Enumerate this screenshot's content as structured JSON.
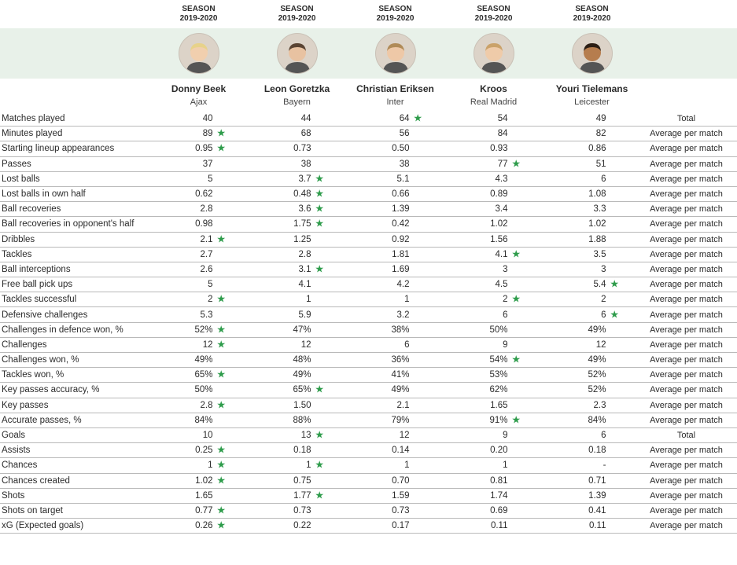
{
  "season_label_line1": "SEASON",
  "season_label_line2": "2019-2020",
  "star_glyph": "★",
  "star_color": "#2e9c4b",
  "avatar_band_bg": "#e8f1e9",
  "row_border_color": "#b9b9b9",
  "text_color": "#2b2b2b",
  "players": [
    {
      "name": "Donny Beek",
      "club": "Ajax",
      "skin": "#f1cfae",
      "hair": "#e7d28a"
    },
    {
      "name": "Leon Goretzka",
      "club": "Bayern",
      "skin": "#e8c2a1",
      "hair": "#5a4433"
    },
    {
      "name": "Christian Eriksen",
      "club": "Inter",
      "skin": "#eec8a7",
      "hair": "#b08b58"
    },
    {
      "name": "Kroos",
      "club": "Real Madrid",
      "skin": "#efcba9",
      "hair": "#caa26a"
    },
    {
      "name": "Youri Tielemans",
      "club": "Leicester",
      "skin": "#b67d4e",
      "hair": "#2b1e14"
    }
  ],
  "agg_labels": {
    "total": "Total",
    "avg": "Average per match"
  },
  "metrics": [
    {
      "label": "Matches played",
      "agg": "total",
      "values": [
        {
          "v": "40"
        },
        {
          "v": "44"
        },
        {
          "v": "64",
          "best": true
        },
        {
          "v": "54"
        },
        {
          "v": "49"
        }
      ]
    },
    {
      "label": "Minutes played",
      "agg": "avg",
      "values": [
        {
          "v": "89",
          "best": true
        },
        {
          "v": "68"
        },
        {
          "v": "56"
        },
        {
          "v": "84"
        },
        {
          "v": "82"
        }
      ]
    },
    {
      "label": "Starting lineup appearances",
      "agg": "avg",
      "values": [
        {
          "v": "0.95",
          "best": true
        },
        {
          "v": "0.73"
        },
        {
          "v": "0.50"
        },
        {
          "v": "0.93"
        },
        {
          "v": "0.86"
        }
      ]
    },
    {
      "label": "Passes",
      "agg": "avg",
      "values": [
        {
          "v": "37"
        },
        {
          "v": "38"
        },
        {
          "v": "38"
        },
        {
          "v": "77",
          "best": true
        },
        {
          "v": "51"
        }
      ]
    },
    {
      "label": "Lost balls",
      "agg": "avg",
      "values": [
        {
          "v": "5"
        },
        {
          "v": "3.7",
          "best": true
        },
        {
          "v": "5.1"
        },
        {
          "v": "4.3"
        },
        {
          "v": "6"
        }
      ]
    },
    {
      "label": "Lost balls in own half",
      "agg": "avg",
      "values": [
        {
          "v": "0.62"
        },
        {
          "v": "0.48",
          "best": true
        },
        {
          "v": "0.66"
        },
        {
          "v": "0.89"
        },
        {
          "v": "1.08"
        }
      ]
    },
    {
      "label": "Ball recoveries",
      "agg": "avg",
      "values": [
        {
          "v": "2.8"
        },
        {
          "v": "3.6",
          "best": true
        },
        {
          "v": "1.39"
        },
        {
          "v": "3.4"
        },
        {
          "v": "3.3"
        }
      ]
    },
    {
      "label": "Ball recoveries in opponent's half",
      "agg": "avg",
      "values": [
        {
          "v": "0.98"
        },
        {
          "v": "1.75",
          "best": true
        },
        {
          "v": "0.42"
        },
        {
          "v": "1.02"
        },
        {
          "v": "1.02"
        }
      ]
    },
    {
      "label": "Dribbles",
      "agg": "avg",
      "values": [
        {
          "v": "2.1",
          "best": true
        },
        {
          "v": "1.25"
        },
        {
          "v": "0.92"
        },
        {
          "v": "1.56"
        },
        {
          "v": "1.88"
        }
      ]
    },
    {
      "label": "Tackles",
      "agg": "avg",
      "values": [
        {
          "v": "2.7"
        },
        {
          "v": "2.8"
        },
        {
          "v": "1.81"
        },
        {
          "v": "4.1",
          "best": true
        },
        {
          "v": "3.5"
        }
      ]
    },
    {
      "label": "Ball interceptions",
      "agg": "avg",
      "values": [
        {
          "v": "2.6"
        },
        {
          "v": "3.1",
          "best": true
        },
        {
          "v": "1.69"
        },
        {
          "v": "3"
        },
        {
          "v": "3"
        }
      ]
    },
    {
      "label": "Free ball pick ups",
      "agg": "avg",
      "values": [
        {
          "v": "5"
        },
        {
          "v": "4.1"
        },
        {
          "v": "4.2"
        },
        {
          "v": "4.5"
        },
        {
          "v": "5.4",
          "best": true
        }
      ]
    },
    {
      "label": "Tackles successful",
      "agg": "avg",
      "values": [
        {
          "v": "2",
          "best": true
        },
        {
          "v": "1"
        },
        {
          "v": "1"
        },
        {
          "v": "2",
          "best": true
        },
        {
          "v": "2"
        }
      ]
    },
    {
      "label": "Defensive challenges",
      "agg": "avg",
      "values": [
        {
          "v": "5.3"
        },
        {
          "v": "5.9"
        },
        {
          "v": "3.2"
        },
        {
          "v": "6"
        },
        {
          "v": "6",
          "best": true
        }
      ]
    },
    {
      "label": "Challenges in defence won, %",
      "agg": "avg",
      "values": [
        {
          "v": "52%",
          "best": true
        },
        {
          "v": "47%"
        },
        {
          "v": "38%"
        },
        {
          "v": "50%"
        },
        {
          "v": "49%"
        }
      ]
    },
    {
      "label": "Challenges",
      "agg": "avg",
      "values": [
        {
          "v": "12",
          "best": true
        },
        {
          "v": "12"
        },
        {
          "v": "6"
        },
        {
          "v": "9"
        },
        {
          "v": "12"
        }
      ]
    },
    {
      "label": "Challenges won, %",
      "agg": "avg",
      "values": [
        {
          "v": "49%"
        },
        {
          "v": "48%"
        },
        {
          "v": "36%"
        },
        {
          "v": "54%",
          "best": true
        },
        {
          "v": "49%"
        }
      ]
    },
    {
      "label": "Tackles won, %",
      "agg": "avg",
      "values": [
        {
          "v": "65%",
          "best": true
        },
        {
          "v": "49%"
        },
        {
          "v": "41%"
        },
        {
          "v": "53%"
        },
        {
          "v": "52%"
        }
      ]
    },
    {
      "label": "Key passes accuracy, %",
      "agg": "avg",
      "values": [
        {
          "v": "50%"
        },
        {
          "v": "65%",
          "best": true
        },
        {
          "v": "49%"
        },
        {
          "v": "62%"
        },
        {
          "v": "52%"
        }
      ]
    },
    {
      "label": "Key passes",
      "agg": "avg",
      "values": [
        {
          "v": "2.8",
          "best": true
        },
        {
          "v": "1.50"
        },
        {
          "v": "2.1"
        },
        {
          "v": "1.65"
        },
        {
          "v": "2.3"
        }
      ]
    },
    {
      "label": "Accurate passes, %",
      "agg": "avg",
      "values": [
        {
          "v": "84%"
        },
        {
          "v": "88%"
        },
        {
          "v": "79%"
        },
        {
          "v": "91%",
          "best": true
        },
        {
          "v": "84%"
        }
      ]
    },
    {
      "label": "Goals",
      "agg": "total",
      "values": [
        {
          "v": "10"
        },
        {
          "v": "13",
          "best": true
        },
        {
          "v": "12"
        },
        {
          "v": "9"
        },
        {
          "v": "6"
        }
      ]
    },
    {
      "label": "Assists",
      "agg": "avg",
      "values": [
        {
          "v": "0.25",
          "best": true
        },
        {
          "v": "0.18"
        },
        {
          "v": "0.14"
        },
        {
          "v": "0.20"
        },
        {
          "v": "0.18"
        }
      ]
    },
    {
      "label": "Chances",
      "agg": "avg",
      "values": [
        {
          "v": "1",
          "best": true
        },
        {
          "v": "1",
          "best": true
        },
        {
          "v": "1"
        },
        {
          "v": "1"
        },
        {
          "v": "-"
        }
      ]
    },
    {
      "label": "Chances created",
      "agg": "avg",
      "values": [
        {
          "v": "1.02",
          "best": true
        },
        {
          "v": "0.75"
        },
        {
          "v": "0.70"
        },
        {
          "v": "0.81"
        },
        {
          "v": "0.71"
        }
      ]
    },
    {
      "label": "Shots",
      "agg": "avg",
      "values": [
        {
          "v": "1.65"
        },
        {
          "v": "1.77",
          "best": true
        },
        {
          "v": "1.59"
        },
        {
          "v": "1.74"
        },
        {
          "v": "1.39"
        }
      ]
    },
    {
      "label": "Shots on target",
      "agg": "avg",
      "values": [
        {
          "v": "0.77",
          "best": true
        },
        {
          "v": "0.73"
        },
        {
          "v": "0.73"
        },
        {
          "v": "0.69"
        },
        {
          "v": "0.41"
        }
      ]
    },
    {
      "label": "xG (Expected goals)",
      "agg": "avg",
      "values": [
        {
          "v": "0.26",
          "best": true
        },
        {
          "v": "0.22"
        },
        {
          "v": "0.17"
        },
        {
          "v": "0.11"
        },
        {
          "v": "0.11"
        }
      ]
    }
  ]
}
